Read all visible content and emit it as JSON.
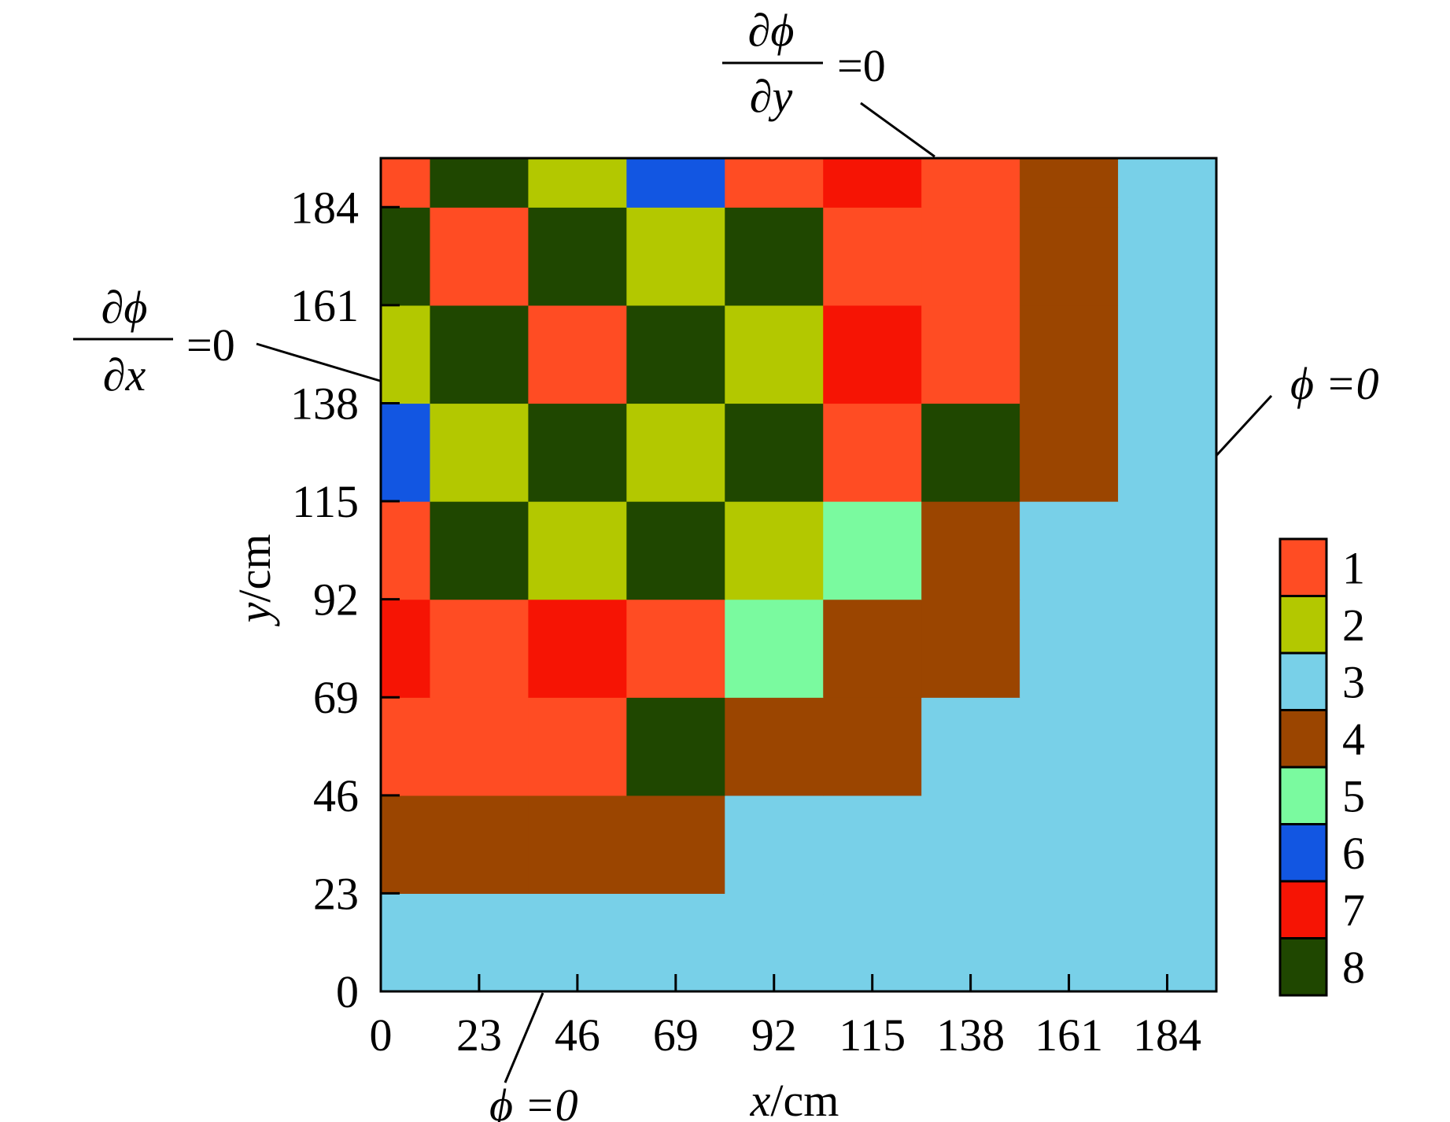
{
  "chart_data": {
    "type": "heatmap",
    "xlabel": {
      "var": "x",
      "unit": "/cm"
    },
    "ylabel": {
      "var": "y",
      "unit": "/cm"
    },
    "x_ticks": [
      "0",
      "23",
      "46",
      "69",
      "92",
      "115",
      "138",
      "161",
      "184"
    ],
    "y_ticks": [
      "0",
      "23",
      "46",
      "69",
      "92",
      "115",
      "138",
      "161",
      "184"
    ],
    "xlim": [
      0,
      195.5
    ],
    "ylim": [
      0,
      195.5
    ],
    "x_edges": [
      0,
      11.5,
      34.5,
      57.5,
      80.5,
      103.5,
      126.5,
      149.5,
      172.5,
      195.5
    ],
    "y_edges": [
      0,
      23,
      46,
      69,
      92,
      115,
      138,
      161,
      184,
      195.5
    ],
    "grid_rows_bottom_to_top": [
      [
        3,
        3,
        3,
        3,
        3,
        3,
        3,
        3,
        3
      ],
      [
        4,
        4,
        4,
        4,
        3,
        3,
        3,
        3,
        3
      ],
      [
        1,
        1,
        1,
        8,
        4,
        4,
        3,
        3,
        3
      ],
      [
        7,
        1,
        7,
        1,
        5,
        4,
        4,
        3,
        3
      ],
      [
        1,
        8,
        2,
        8,
        2,
        5,
        4,
        3,
        3
      ],
      [
        6,
        2,
        8,
        2,
        8,
        1,
        8,
        4,
        3
      ],
      [
        2,
        8,
        1,
        8,
        2,
        7,
        1,
        4,
        3
      ],
      [
        8,
        1,
        8,
        2,
        8,
        1,
        1,
        4,
        3
      ],
      [
        1,
        8,
        2,
        6,
        1,
        7,
        1,
        4,
        3
      ]
    ],
    "legend": {
      "labels": [
        "1",
        "2",
        "3",
        "4",
        "5",
        "6",
        "7",
        "8"
      ],
      "colors": [
        "#ff4c23",
        "#b3c800",
        "#78d0e8",
        "#9b4500",
        "#7afa9f",
        "#1256e2",
        "#f61404",
        "#1f4700"
      ],
      "placement": "right"
    },
    "boundary_conditions": [
      {
        "position": "top",
        "numerator": "∂ϕ",
        "denominator": "∂y",
        "equals": "=0"
      },
      {
        "position": "left",
        "numerator": "∂ϕ",
        "denominator": "∂x",
        "equals": "=0"
      },
      {
        "position": "right",
        "text": "ϕ =0"
      },
      {
        "position": "bottom",
        "text": "ϕ =0"
      }
    ]
  }
}
